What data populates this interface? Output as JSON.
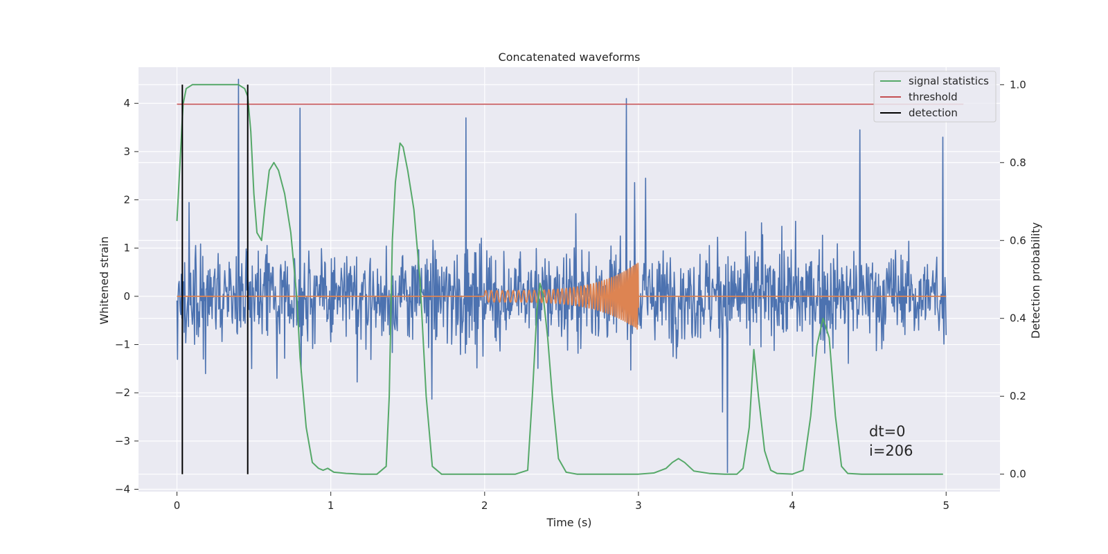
{
  "chart_data": {
    "type": "line",
    "title": "Concatenated waveforms",
    "xlabel": "Time (s)",
    "ylabel": "Whitened strain",
    "ylabel_right": "Detection probability",
    "xlim": [
      -0.25,
      5.35
    ],
    "ylim": [
      -4.05,
      4.75
    ],
    "ylim_right": [
      -0.045,
      1.045
    ],
    "xticks": [
      0,
      1,
      2,
      3,
      4,
      5
    ],
    "yticks": [
      -4,
      -3,
      -2,
      -1,
      0,
      1,
      2,
      3,
      4
    ],
    "yticks_right": [
      0.0,
      0.2,
      0.4,
      0.6,
      0.8,
      1.0
    ],
    "xtick_labels": [
      "0",
      "1",
      "2",
      "3",
      "4",
      "5"
    ],
    "ytick_labels": [
      "−4",
      "−3",
      "−2",
      "−1",
      "0",
      "1",
      "2",
      "3",
      "4"
    ],
    "ytick_right_labels": [
      "0.0",
      "0.2",
      "0.4",
      "0.6",
      "0.8",
      "1.0"
    ],
    "grid": true,
    "legend_position": "top-right",
    "colors": {
      "strain": "#4c72b0",
      "template": "#dd8452",
      "signal_statistics": "#55a868",
      "threshold": "#c44e52",
      "detection": "#000000",
      "plot_background": "#eaeaf2",
      "grid": "#ffffff"
    },
    "series": [
      {
        "name": "signal statistics",
        "axis": "right",
        "x": [
          0.0,
          0.02,
          0.04,
          0.06,
          0.1,
          0.15,
          0.2,
          0.3,
          0.4,
          0.44,
          0.46,
          0.48,
          0.5,
          0.52,
          0.55,
          0.57,
          0.6,
          0.63,
          0.66,
          0.7,
          0.74,
          0.78,
          0.8,
          0.84,
          0.88,
          0.92,
          0.95,
          0.98,
          1.02,
          1.1,
          1.2,
          1.3,
          1.36,
          1.38,
          1.4,
          1.42,
          1.45,
          1.47,
          1.5,
          1.54,
          1.58,
          1.62,
          1.66,
          1.72,
          1.8,
          2.0,
          2.2,
          2.28,
          2.31,
          2.34,
          2.36,
          2.38,
          2.41,
          2.44,
          2.48,
          2.53,
          2.6,
          2.8,
          3.0,
          3.1,
          3.18,
          3.22,
          3.26,
          3.3,
          3.36,
          3.46,
          3.56,
          3.64,
          3.68,
          3.72,
          3.75,
          3.78,
          3.82,
          3.86,
          3.9,
          4.0,
          4.07,
          4.12,
          4.16,
          4.2,
          4.24,
          4.28,
          4.32,
          4.36,
          4.45,
          4.6,
          4.8,
          4.98
        ],
        "y": [
          0.65,
          0.8,
          0.95,
          0.99,
          1.0,
          1.0,
          1.0,
          1.0,
          1.0,
          0.99,
          0.97,
          0.88,
          0.72,
          0.62,
          0.6,
          0.68,
          0.78,
          0.8,
          0.78,
          0.72,
          0.62,
          0.45,
          0.3,
          0.12,
          0.03,
          0.015,
          0.01,
          0.015,
          0.005,
          0.002,
          0.0,
          0.0,
          0.02,
          0.2,
          0.6,
          0.75,
          0.85,
          0.84,
          0.78,
          0.68,
          0.5,
          0.2,
          0.02,
          0.0,
          0.0,
          0.0,
          0.0,
          0.01,
          0.2,
          0.42,
          0.49,
          0.46,
          0.35,
          0.2,
          0.04,
          0.005,
          0.0,
          0.0,
          0.0,
          0.003,
          0.015,
          0.03,
          0.04,
          0.03,
          0.008,
          0.002,
          0.0,
          0.0,
          0.015,
          0.12,
          0.32,
          0.2,
          0.06,
          0.01,
          0.002,
          0.0,
          0.01,
          0.15,
          0.33,
          0.4,
          0.35,
          0.15,
          0.02,
          0.002,
          0.0,
          0.0,
          0.0,
          0.0
        ]
      },
      {
        "name": "threshold",
        "axis": "right",
        "x": [
          0.0,
          5.0
        ],
        "y": [
          0.95,
          0.95
        ]
      },
      {
        "name": "detection",
        "axis": "right",
        "vlines": [
          0.035,
          0.46
        ],
        "y_range": [
          0.0,
          1.0
        ]
      }
    ],
    "unlabeled_series": [
      {
        "role": "whitened strain noise",
        "axis": "left",
        "x_range": [
          0.0,
          5.0
        ],
        "typical_range": [
          -2.0,
          2.0
        ],
        "spikes": [
          {
            "x": 0.4,
            "y": 4.5
          },
          {
            "x": 0.8,
            "y": 3.9
          },
          {
            "x": 1.88,
            "y": 3.7
          },
          {
            "x": 2.92,
            "y": 4.1
          },
          {
            "x": 3.58,
            "y": -3.65
          },
          {
            "x": 4.98,
            "y": 3.3
          },
          {
            "x": 4.44,
            "y": 3.45
          }
        ]
      },
      {
        "role": "injected chirp waveform",
        "axis": "left",
        "x_range": [
          2.0,
          3.0
        ],
        "amplitude_start": 0.12,
        "amplitude_peak": 0.7
      }
    ],
    "annotations": [
      {
        "text": "dt=0"
      },
      {
        "text": "i=206"
      }
    ]
  }
}
